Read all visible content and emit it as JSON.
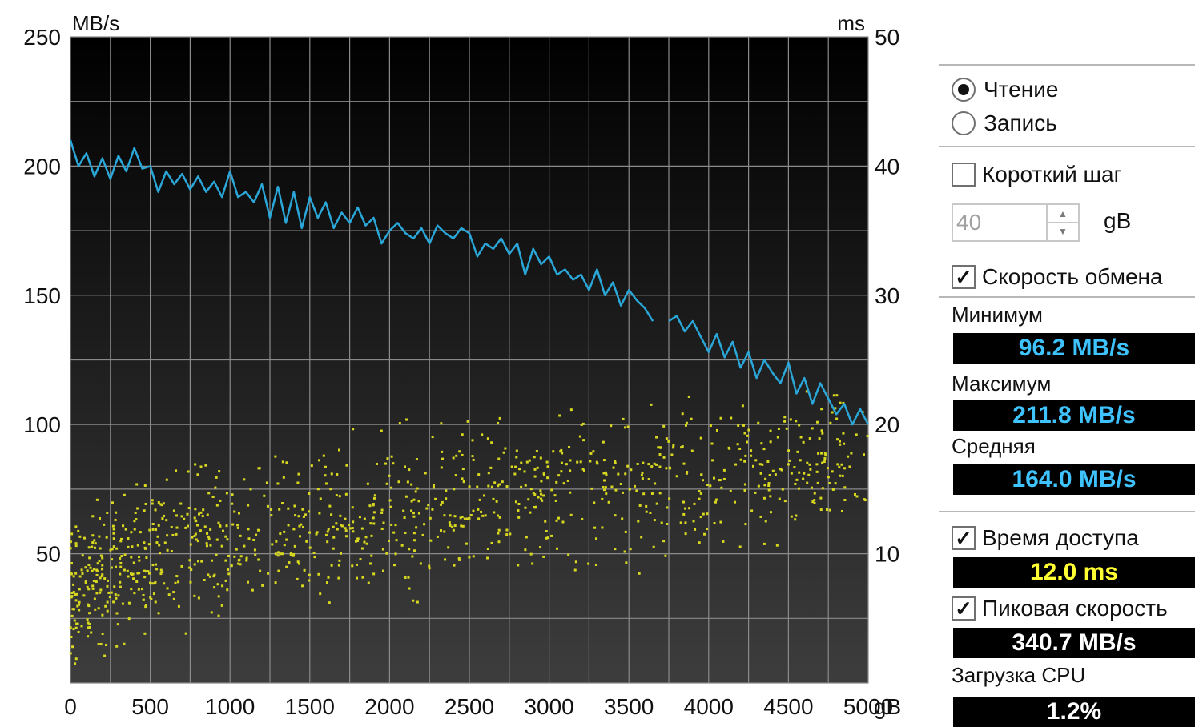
{
  "chart_data": {
    "type": "line",
    "y_left_unit": "MB/s",
    "y_right_unit": "ms",
    "x_unit": "gB",
    "x_ticks": [
      "0",
      "500",
      "1000",
      "1500",
      "2000",
      "2500",
      "3000",
      "3500",
      "4000",
      "4500",
      "5000"
    ],
    "y_left_ticks": [
      "50",
      "100",
      "150",
      "200",
      "250"
    ],
    "y_right_ticks": [
      "10",
      "20",
      "30",
      "40",
      "50"
    ],
    "xlim": [
      0,
      5000
    ],
    "ylim_left": [
      0,
      250
    ],
    "ylim_right": [
      0,
      50
    ],
    "grid": true,
    "series": [
      {
        "color": "#2aa7d8",
        "axis": "left",
        "x": [
          0,
          50,
          100,
          150,
          200,
          250,
          300,
          350,
          400,
          450,
          500,
          550,
          600,
          650,
          700,
          750,
          800,
          850,
          900,
          950,
          1000,
          1050,
          1100,
          1150,
          1200,
          1250,
          1300,
          1350,
          1400,
          1450,
          1500,
          1550,
          1600,
          1650,
          1700,
          1750,
          1800,
          1850,
          1900,
          1950,
          2000,
          2050,
          2100,
          2150,
          2200,
          2250,
          2300,
          2350,
          2400,
          2450,
          2500,
          2550,
          2600,
          2650,
          2700,
          2750,
          2800,
          2850,
          2900,
          2950,
          3000,
          3050,
          3100,
          3150,
          3200,
          3250,
          3300,
          3350,
          3400,
          3450,
          3500,
          3550,
          3600,
          3650
        ],
        "y": [
          210,
          200,
          205,
          196,
          203,
          195,
          204,
          198,
          207,
          199,
          200,
          190,
          198,
          193,
          197,
          191,
          196,
          190,
          194,
          188,
          198,
          188,
          190,
          186,
          193,
          180,
          192,
          178,
          190,
          176,
          188,
          180,
          186,
          176,
          182,
          178,
          184,
          177,
          180,
          170,
          175,
          178,
          174,
          172,
          176,
          170,
          177,
          174,
          172,
          176,
          174,
          165,
          170,
          168,
          172,
          166,
          170,
          158,
          168,
          162,
          165,
          158,
          160,
          156,
          158,
          152,
          160,
          150,
          155,
          146,
          152,
          148,
          145,
          140
        ]
      },
      {
        "color": "#2aa7d8",
        "axis": "left",
        "x": [
          3750,
          3800,
          3850,
          3900,
          3950,
          4000,
          4050,
          4100,
          4150,
          4200,
          4250,
          4300,
          4350,
          4400,
          4450,
          4500,
          4550,
          4600,
          4650,
          4700,
          4750,
          4800,
          4850,
          4900,
          4950,
          5000
        ],
        "y": [
          140,
          142,
          136,
          140,
          134,
          128,
          135,
          126,
          132,
          122,
          128,
          118,
          125,
          120,
          116,
          124,
          112,
          118,
          108,
          116,
          110,
          104,
          108,
          100,
          106,
          100
        ]
      },
      {
        "type": "scatter",
        "color": "#d8d820",
        "axis": "right",
        "density": "dense at 0-2500 gB, sparse toward 5000 gB",
        "trend_x": [
          0,
          500,
          1000,
          1500,
          2000,
          2500,
          3000,
          3500,
          4000,
          4500,
          5000
        ],
        "trend_y_ms": [
          7,
          10,
          11,
          12,
          13,
          14,
          15,
          15,
          16,
          17,
          17
        ],
        "spread_ms": 5
      }
    ]
  },
  "panel": {
    "read_label": "Чтение",
    "write_label": "Запись",
    "short_stroke_label": "Короткий шаг",
    "short_stroke_value": "40",
    "short_stroke_unit": "gB",
    "transfer_rate_label": "Скорость обмена",
    "min_label": "Минимум",
    "min_value": "96.2 MB/s",
    "max_label": "Максимум",
    "max_value": "211.8 MB/s",
    "avg_label": "Средняя",
    "avg_value": "164.0 MB/s",
    "access_time_label": "Время доступа",
    "access_time_value": "12.0 ms",
    "burst_rate_label": "Пиковая скорость",
    "burst_rate_value": "340.7 MB/s",
    "cpu_label": "Загрузка CPU",
    "cpu_value": "1.2%",
    "check_mark": "✓"
  }
}
